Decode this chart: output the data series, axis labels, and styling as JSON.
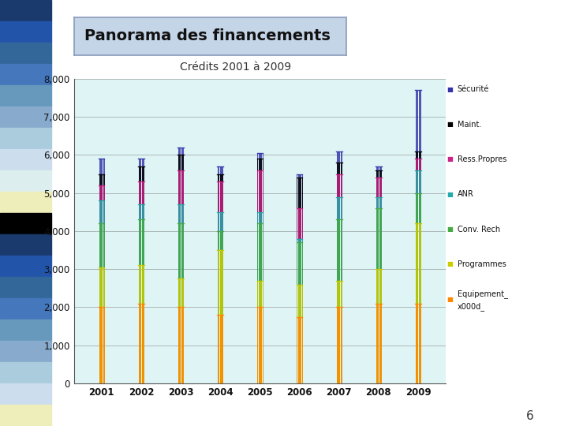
{
  "title_main": "Panorama des financements",
  "subtitle": "Crédits 2001 à 2009",
  "years": [
    2001,
    2002,
    2003,
    2004,
    2005,
    2006,
    2007,
    2008,
    2009
  ],
  "ylim": [
    0,
    8000
  ],
  "yticks": [
    0,
    1000,
    2000,
    3000,
    4000,
    5000,
    6000,
    7000,
    8000
  ],
  "series_names": [
    "Sécurité",
    "Maint.",
    "Ress.Propres",
    "ANR",
    "Conv. Rech",
    "Programmes",
    "Equipement_\nx000d_"
  ],
  "series_values": [
    [
      5900,
      5900,
      6200,
      5700,
      6050,
      5500,
      6100,
      5700,
      7700
    ],
    [
      5500,
      5700,
      6000,
      5500,
      5900,
      5400,
      5800,
      5600,
      6100
    ],
    [
      5200,
      5300,
      5600,
      5300,
      5600,
      4600,
      5500,
      5400,
      5900
    ],
    [
      4800,
      4700,
      4700,
      4500,
      4500,
      3800,
      4900,
      4900,
      5600
    ],
    [
      4200,
      4300,
      4200,
      4000,
      4200,
      3700,
      4300,
      4600,
      5000
    ],
    [
      3050,
      3100,
      2750,
      3500,
      2700,
      2600,
      2700,
      3000,
      4200
    ],
    [
      2000,
      2100,
      2000,
      1800,
      2000,
      1750,
      2000,
      2100,
      2100
    ]
  ],
  "colors": [
    "#3333aa",
    "#000000",
    "#cc2288",
    "#22aaaa",
    "#44aa44",
    "#cccc00",
    "#ff8800"
  ],
  "bg_color": "#dff5f5",
  "page_bg": "#ffffff",
  "title_box_color": "#c5d5e8",
  "number_label": "6",
  "left_strip_colors": [
    "#1a3a6e",
    "#2255aa",
    "#336699",
    "#4477bb",
    "#6699bb",
    "#88aacc",
    "#aaccdd",
    "#ccddee",
    "#ddeeee",
    "#eeeebb",
    "#000000",
    "#1a3a6e",
    "#2255aa",
    "#336699",
    "#4477bb",
    "#6699bb",
    "#88aacc",
    "#aaccdd",
    "#ccddee",
    "#eeeebb"
  ]
}
